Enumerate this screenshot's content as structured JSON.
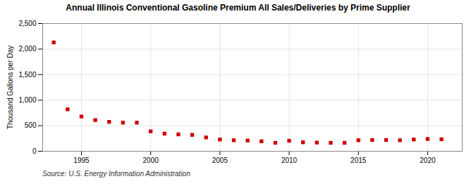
{
  "chart_data": {
    "type": "scatter",
    "title": "Annual Illinois Conventional Gasoline Premium All Sales/Deliveries by Prime Supplier",
    "ylabel": "Thousand Gallons per Day",
    "source": "Source: U.S. Energy Information Administration",
    "x": [
      1993,
      1994,
      1995,
      1996,
      1997,
      1998,
      1999,
      2000,
      2001,
      2002,
      2003,
      2004,
      2005,
      2006,
      2007,
      2008,
      2009,
      2010,
      2011,
      2012,
      2013,
      2014,
      2015,
      2016,
      2017,
      2018,
      2019,
      2020,
      2021
    ],
    "values": [
      2130,
      820,
      680,
      610,
      575,
      560,
      560,
      390,
      345,
      330,
      320,
      270,
      230,
      215,
      210,
      195,
      165,
      205,
      175,
      170,
      165,
      165,
      215,
      220,
      220,
      215,
      230,
      240,
      235
    ],
    "color": "#cc0000",
    "marker": "square",
    "xlim": [
      1992.2,
      2022.5
    ],
    "xticks": [
      1995,
      2000,
      2005,
      2010,
      2015,
      2020
    ],
    "ylim": [
      0,
      2500
    ],
    "yticks": [
      0,
      500,
      {
        "value": 1000,
        "label": "1,000"
      },
      {
        "value": 1500,
        "label": "1,500"
      },
      {
        "value": 2000,
        "label": "2,000"
      },
      {
        "value": 2500,
        "label": "2,500"
      }
    ],
    "grid": true
  }
}
